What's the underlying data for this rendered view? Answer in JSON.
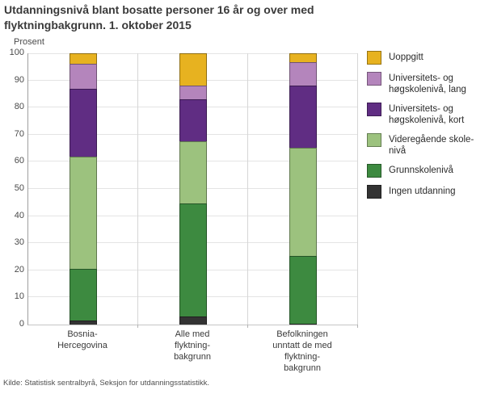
{
  "page": {
    "source": "Kilde: Statistisk sentralbyrå, Seksjon for utdanningsstatistikk."
  },
  "chart_data": {
    "type": "bar",
    "stacked": true,
    "title": "Utdanningsnivå blant bosatte personer 16 år og over med\nflyktningbakgrunn. 1. oktober 2015",
    "unit_label": "Prosent",
    "xlabel": "",
    "ylabel": "Prosent",
    "ylim": [
      0,
      100
    ],
    "ytick_step": 10,
    "grid": true,
    "legend_position": "right",
    "categories": [
      "Bosnia-\nHercegovina",
      "Alle med\nflyktning-\nbakgrunn",
      "Befolkningen\nunntatt de med\nflyktning-\nbakgrunn"
    ],
    "series": [
      {
        "name": "Ingen utdanning",
        "label": "Ingen utdanning",
        "color": "#333333",
        "values": [
          1.5,
          3,
          0.2
        ]
      },
      {
        "name": "Grunnskolenivå",
        "label": "Grunnskolenivå",
        "color": "#3d8a40",
        "values": [
          19,
          41.5,
          25
        ]
      },
      {
        "name": "Videregående skolenivå",
        "label": "Videregående skole-\nnivå",
        "color": "#9cc27e",
        "values": [
          41.5,
          23,
          39.8
        ]
      },
      {
        "name": "Universitets- og høgskolenivå, kort",
        "label": "Universitets- og\nhøgskolenivå, kort",
        "color": "#602d83",
        "values": [
          25,
          15.5,
          23
        ]
      },
      {
        "name": "Universitets- og høgskolenivå, lang",
        "label": "Universitets- og\nhøgskolenivå, lang",
        "color": "#b485bc",
        "values": [
          9,
          5,
          8.5
        ]
      },
      {
        "name": "Uoppgitt",
        "label": "Uoppgitt",
        "color": "#e7b220",
        "values": [
          4,
          12,
          3.5
        ]
      }
    ]
  }
}
